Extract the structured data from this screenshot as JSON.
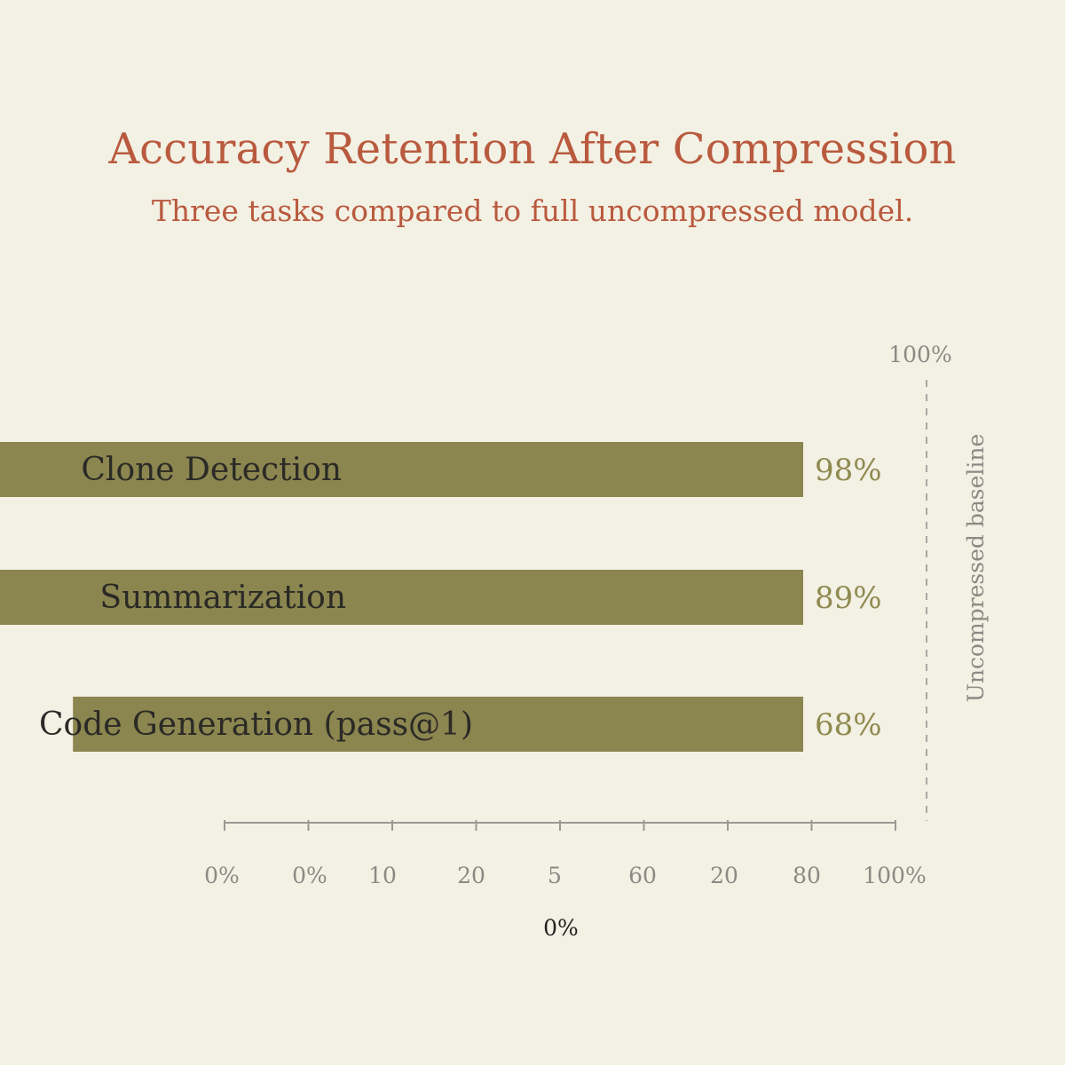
{
  "chart_data": {
    "type": "bar",
    "orientation": "horizontal",
    "title": "Accuracy Retention After Compression",
    "subtitle": "Three tasks compared to full uncompressed model.",
    "categories": [
      "Clone Detection",
      "Summarization",
      "Code Generation (pass@1)"
    ],
    "values": [
      98,
      89,
      68
    ],
    "value_labels": [
      "98%",
      "89%",
      "68%"
    ],
    "x_tick_labels": [
      "0%",
      "0%",
      "10",
      "20",
      "5",
      "60",
      "20",
      "80",
      "100%"
    ],
    "xlabel": "0%",
    "baseline": {
      "label": "Uncompressed baseline",
      "top_label": "100%",
      "value": 100
    },
    "xlim": [
      0,
      100
    ],
    "grid": false,
    "colors": {
      "bar": "#8b854f",
      "value_label": "#8f8a4f",
      "title": "#b95a3e",
      "axis": "#9a9a94",
      "background": "#f3f0e4"
    }
  }
}
